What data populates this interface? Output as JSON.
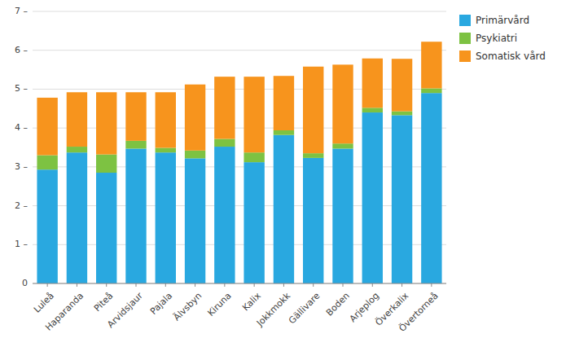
{
  "chart_data": {
    "type": "bar",
    "stacked": true,
    "categories": [
      "Luleå",
      "Haparanda",
      "Piteå",
      "Arvidsjaur",
      "Pajala",
      "Älvsbyn",
      "Kiruna",
      "Kalix",
      "Jokkmokk",
      "Gällivare",
      "Boden",
      "Arjeplog",
      "Överkalix",
      "Övertorneå"
    ],
    "series": [
      {
        "name": "Primärvård",
        "color": "#29A8E0",
        "values": [
          2.93,
          3.37,
          2.85,
          3.47,
          3.37,
          3.22,
          3.52,
          3.12,
          3.82,
          3.23,
          3.47,
          4.4,
          4.33,
          4.9
        ]
      },
      {
        "name": "Psykiatri",
        "color": "#7DC242",
        "values": [
          0.37,
          0.15,
          0.47,
          0.2,
          0.12,
          0.2,
          0.2,
          0.25,
          0.12,
          0.12,
          0.13,
          0.12,
          0.1,
          0.12
        ]
      },
      {
        "name": "Somatisk vård",
        "color": "#F7941D",
        "values": [
          1.48,
          1.4,
          1.6,
          1.25,
          1.43,
          1.7,
          1.6,
          1.95,
          1.4,
          2.23,
          2.03,
          1.27,
          1.35,
          1.2
        ]
      }
    ],
    "ylim": [
      0,
      7
    ],
    "yticks": [
      0,
      {
        "value": 1,
        "label": "1 –"
      },
      {
        "value": 2,
        "label": "2 –"
      },
      {
        "value": 3,
        "label": "3 –"
      },
      {
        "value": 4,
        "label": "4 –"
      },
      {
        "value": 5,
        "label": "5 –"
      },
      {
        "value": 6,
        "label": "6 –"
      },
      {
        "value": 7,
        "label": "7 –"
      }
    ],
    "grid": true,
    "legend": "upper right"
  }
}
